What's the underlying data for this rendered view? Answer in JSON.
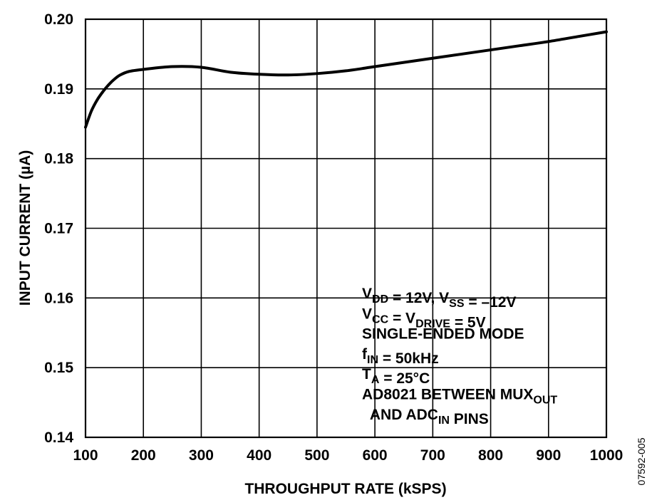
{
  "chart_data": {
    "type": "line",
    "xlabel": "THROUGHPUT RATE (kSPS)",
    "ylabel": "INPUT CURRENT (µA)",
    "xlim": [
      100,
      1000
    ],
    "ylim": [
      0.14,
      0.2
    ],
    "x_ticks": [
      "100",
      "200",
      "300",
      "400",
      "500",
      "600",
      "700",
      "800",
      "900",
      "1000"
    ],
    "y_ticks": [
      "0.20",
      "0.19",
      "0.18",
      "0.17",
      "0.16",
      "0.15",
      "0.14"
    ],
    "grid": true,
    "series": [
      {
        "x": [
          100,
          110,
          120,
          130,
          140,
          150,
          160,
          175,
          200,
          250,
          300,
          350,
          400,
          450,
          500,
          550,
          600,
          650,
          700,
          750,
          800,
          850,
          900,
          950,
          1000
        ],
        "y": [
          0.1845,
          0.1868,
          0.1884,
          0.1896,
          0.1906,
          0.1914,
          0.192,
          0.1925,
          0.1928,
          0.1932,
          0.1931,
          0.1924,
          0.1921,
          0.192,
          0.1922,
          0.1926,
          0.1932,
          0.1938,
          0.1944,
          0.195,
          0.1956,
          0.1962,
          0.1968,
          0.1975,
          0.1982
        ]
      }
    ],
    "annotations": [
      [
        {
          "t": "V"
        },
        {
          "t": "DD",
          "sub": true
        },
        {
          "t": " = 12V, V"
        },
        {
          "t": "SS",
          "sub": true
        },
        {
          "t": " = –12V"
        }
      ],
      [
        {
          "t": "V"
        },
        {
          "t": "CC",
          "sub": true
        },
        {
          "t": " = V"
        },
        {
          "t": "DRIVE",
          "sub": true
        },
        {
          "t": " = 5V"
        }
      ],
      [
        {
          "t": "SINGLE-ENDED MODE"
        }
      ],
      [
        {
          "t": "f"
        },
        {
          "t": "IN",
          "sub": true
        },
        {
          "t": " = 50kHz"
        }
      ],
      [
        {
          "t": "T"
        },
        {
          "t": "A",
          "sub": true
        },
        {
          "t": " = 25°C"
        }
      ],
      [
        {
          "t": "AD8021 BETWEEN MUX"
        },
        {
          "t": "OUT",
          "sub": true
        }
      ],
      [
        {
          "t": "  AND ADC"
        },
        {
          "t": "IN",
          "sub": true
        },
        {
          "t": " PINS"
        }
      ]
    ],
    "figure_code": "07592-005"
  }
}
